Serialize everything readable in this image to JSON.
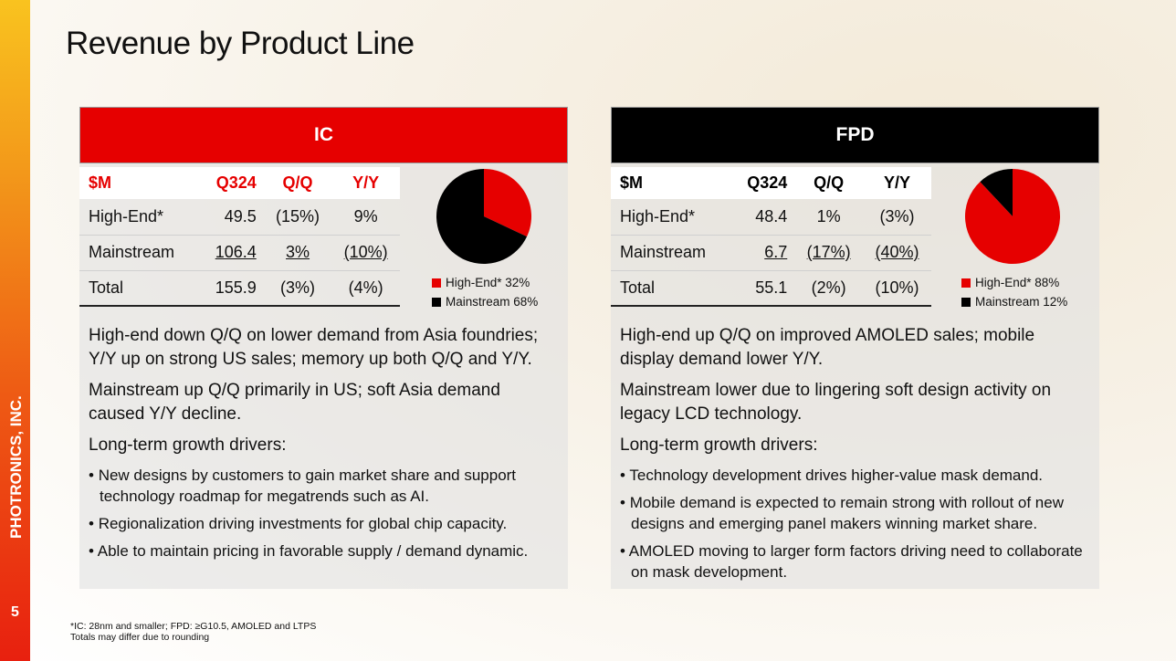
{
  "brand": "PHOTRONICS, INC.",
  "page_number": "5",
  "title": "Revenue by Product Line",
  "panels": [
    {
      "name": "IC",
      "header_color": "#e60000",
      "header_text_color": "#e60000",
      "columns": [
        "$M",
        "Q324",
        "Q/Q",
        "Y/Y"
      ],
      "rows": [
        [
          "High-End*",
          "49.5",
          "(15%)",
          "9%"
        ],
        [
          "Mainstream",
          "106.4",
          "3%",
          "(10%)"
        ],
        [
          "Total",
          "155.9",
          "(3%)",
          "(4%)"
        ]
      ],
      "pie": [
        {
          "label": "High-End*",
          "value": 32,
          "color": "#e60000"
        },
        {
          "label": "Mainstream",
          "value": 68,
          "color": "#000000"
        }
      ],
      "legend": [
        "High-End* 32%",
        "Mainstream 68%"
      ],
      "paragraphs": [
        "High-end down Q/Q on lower demand from Asia foundries; Y/Y up on strong US sales; memory up both Q/Q and Y/Y.",
        "Mainstream up Q/Q primarily in US; soft Asia demand caused Y/Y decline.",
        "Long-term growth drivers:"
      ],
      "bullets": [
        "New designs by customers to gain market share and support technology roadmap for megatrends such as AI.",
        "Regionalization driving investments for global chip capacity.",
        "Able to maintain pricing in favorable supply / demand dynamic."
      ]
    },
    {
      "name": "FPD",
      "header_color": "#000000",
      "header_text_color": "#000000",
      "columns": [
        "$M",
        "Q324",
        "Q/Q",
        "Y/Y"
      ],
      "rows": [
        [
          "High-End*",
          "48.4",
          "1%",
          "(3%)"
        ],
        [
          "Mainstream",
          "6.7",
          "(17%)",
          "(40%)"
        ],
        [
          "Total",
          "55.1",
          "(2%)",
          "(10%)"
        ]
      ],
      "pie": [
        {
          "label": "High-End*",
          "value": 88,
          "color": "#e60000"
        },
        {
          "label": "Mainstream",
          "value": 12,
          "color": "#000000"
        }
      ],
      "legend": [
        "High-End* 88%",
        "Mainstream 12%"
      ],
      "paragraphs": [
        "High-end up Q/Q on improved AMOLED sales; mobile display demand lower Y/Y.",
        "Mainstream lower due to lingering soft design activity on legacy LCD technology.",
        "Long-term growth drivers:"
      ],
      "bullets": [
        "Technology development drives higher-value mask demand.",
        "Mobile demand is expected to remain strong with rollout of new designs and emerging panel makers winning market share.",
        "AMOLED moving to larger form factors driving need to collaborate on mask development."
      ]
    }
  ],
  "footnotes": [
    "*IC: 28nm and smaller; FPD: ≥G10.5, AMOLED and LTPS",
    "Totals may differ due to rounding"
  ]
}
